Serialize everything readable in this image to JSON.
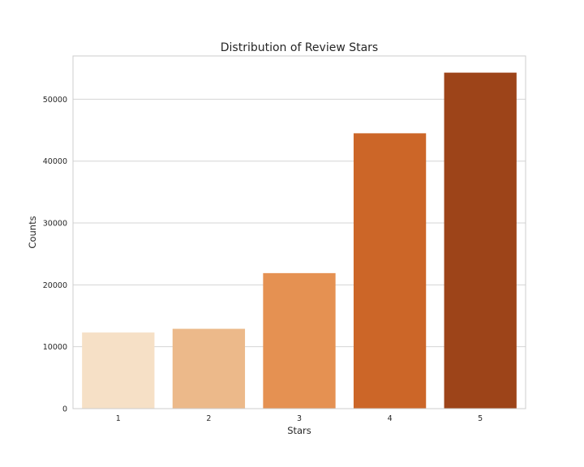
{
  "chart_data": {
    "type": "bar",
    "title": "Distribution of Review Stars",
    "xlabel": "Stars",
    "ylabel": "Counts",
    "categories": [
      "1",
      "2",
      "3",
      "4",
      "5"
    ],
    "values": [
      12300,
      12900,
      21900,
      44500,
      54300
    ],
    "colors": [
      "#f6e0c6",
      "#ecb98a",
      "#e59152",
      "#cc6628",
      "#9d4419"
    ],
    "ylim": [
      0,
      57000
    ],
    "yticks": [
      0,
      10000,
      20000,
      30000,
      40000,
      50000
    ],
    "ytick_labels": [
      "0",
      "10000",
      "20000",
      "30000",
      "40000",
      "50000"
    ],
    "grid": true,
    "style": {
      "grid_color": "#d5d5d5",
      "frame_color": "#cccccc",
      "background": "#ffffff"
    }
  }
}
